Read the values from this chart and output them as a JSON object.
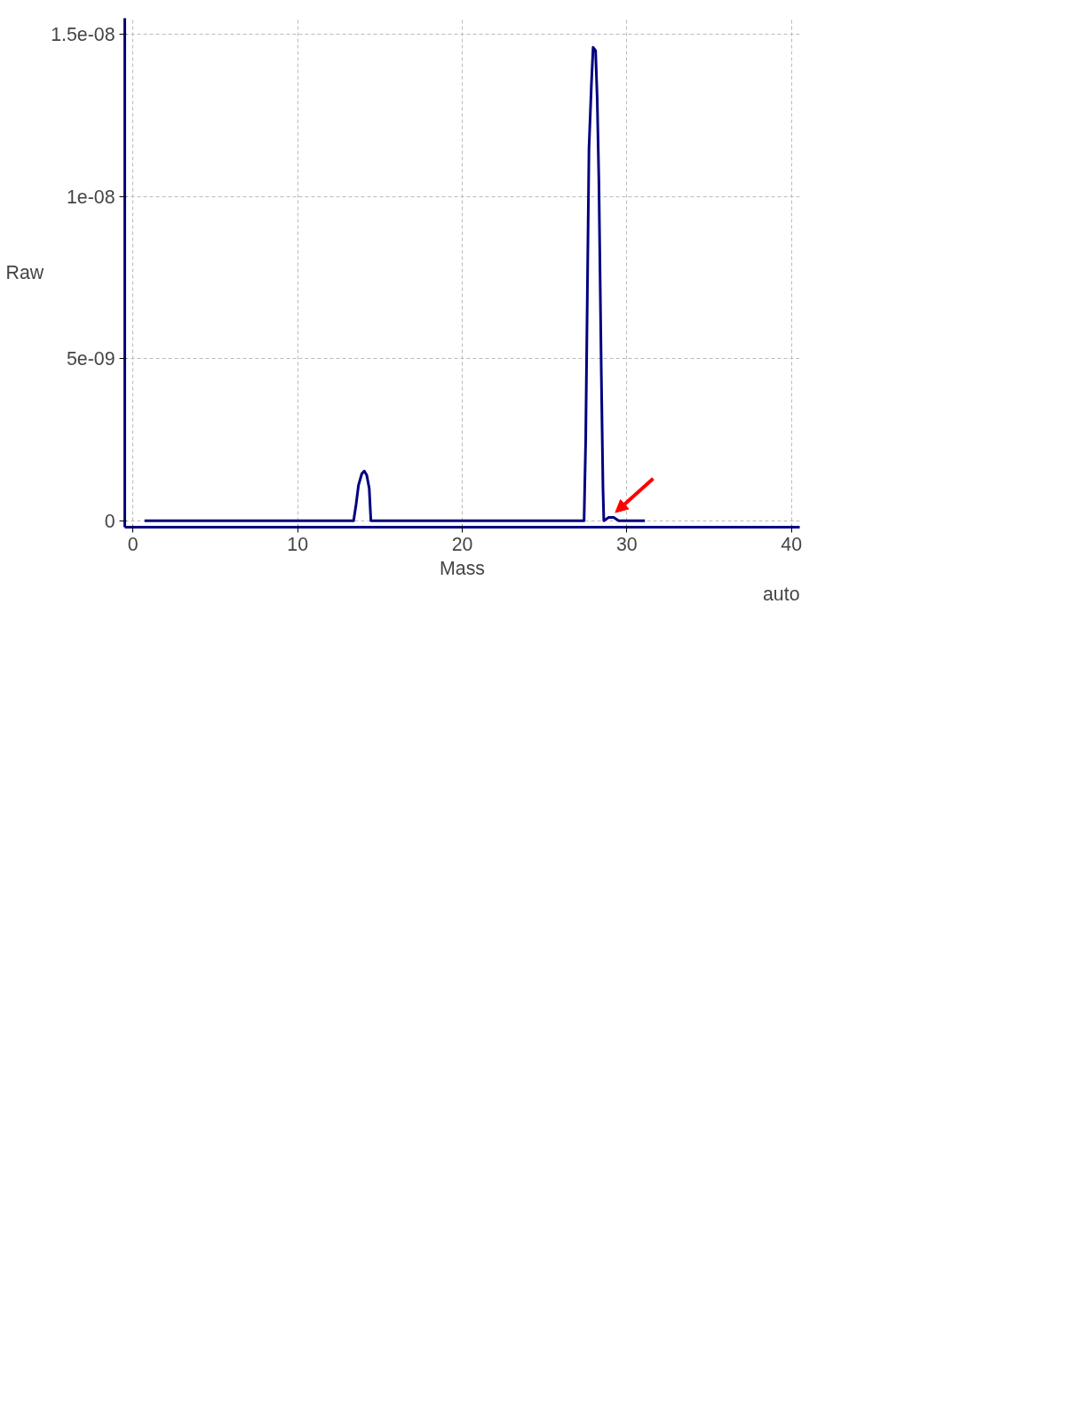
{
  "chart_data": {
    "type": "line",
    "xlabel": "Mass",
    "ylabel": "Raw",
    "annotations": [
      "auto"
    ],
    "series": [
      {
        "color": "#000080",
        "x": [
          0.7,
          13.4,
          13.55,
          13.7,
          13.9,
          14.05,
          14.2,
          14.35,
          14.45,
          27.4,
          27.5,
          27.6,
          27.7,
          27.85,
          27.95,
          28.1,
          28.2,
          28.3,
          28.45,
          28.55,
          28.6,
          28.9,
          29.2,
          29.5,
          31.1
        ],
        "values": [
          0,
          0,
          5e-10,
          1.1e-09,
          1.45e-09,
          1.53e-09,
          1.4e-09,
          1e-09,
          0,
          0,
          2.5e-09,
          7e-09,
          1.15e-08,
          1.35e-08,
          1.46e-08,
          1.45e-08,
          1.3e-08,
          1.05e-08,
          4.5e-09,
          1e-09,
          0,
          1e-10,
          1e-10,
          0,
          0
        ]
      }
    ],
    "xlim": [
      -0.5,
      40.5
    ],
    "ylim": [
      -2e-10,
      1.55e-08
    ],
    "xticks": [
      0,
      10,
      20,
      30,
      40
    ],
    "yticks": [
      {
        "value": 0,
        "label": "0"
      },
      {
        "value": 5e-09,
        "label": "5e-09"
      },
      {
        "value": 1e-08,
        "label": "1e-08"
      },
      {
        "value": 1.5e-08,
        "label": "1.5e-08"
      }
    ],
    "grid": true,
    "marker": "none",
    "line_style": "solid"
  }
}
